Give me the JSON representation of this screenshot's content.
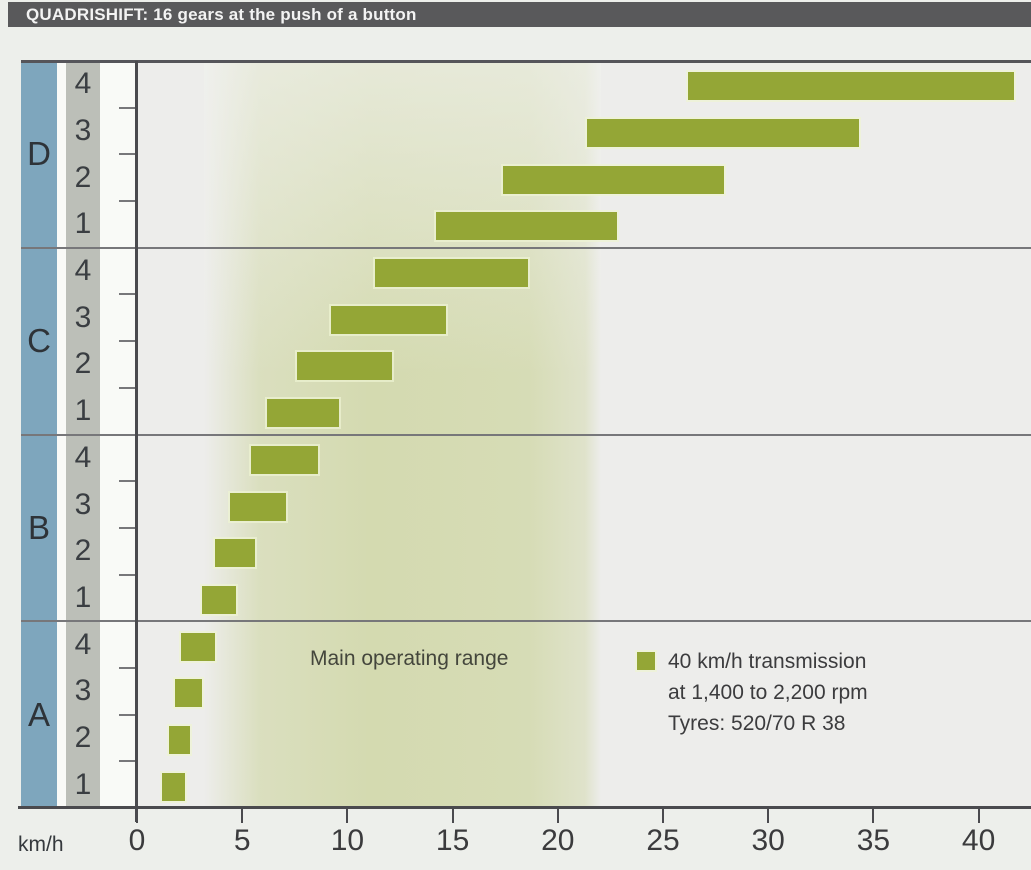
{
  "title_bar": {
    "text": "QUADRISHIFT: 16 gears at the push of a button"
  },
  "axis": {
    "unit_label": "km/h",
    "tick_values": [
      0,
      5,
      10,
      15,
      20,
      25,
      30,
      35,
      40
    ]
  },
  "annotations": {
    "band_label": "Main operating range"
  },
  "legend": {
    "swatch": "bar-color-square",
    "lines": [
      "40 km/h transmission",
      "at 1,400 to 2,200 rpm",
      "Tyres: 520/70 R 38"
    ]
  },
  "colors": {
    "title_bar_bg": "#59595b",
    "title_bar_text": "#f3f3f3",
    "page_bg": "#edefeb",
    "group_column_blue": "#7ea6bd",
    "gear_column_gray": "#bcbfb8",
    "plot_bg": "#ededeb",
    "band_green": "#d4dab0",
    "bar_olive": "#94a636",
    "grid_line": "#77777a",
    "axis_line": "#4a4a4e",
    "text_dark": "#35393d"
  },
  "chart_data": {
    "type": "bar",
    "orientation": "horizontal",
    "title": "QUADRISHIFT: 16 gears at the push of a button",
    "xlabel": "km/h",
    "xlim": [
      0,
      42.5
    ],
    "x_ticks": [
      0,
      5,
      10,
      15,
      20,
      25,
      30,
      35,
      40
    ],
    "grid": "group-boundaries-only",
    "band": {
      "label": "Main operating range",
      "from": 3.2,
      "to": 22.0
    },
    "legend_note": [
      "40 km/h transmission",
      "at 1,400 to 2,200 rpm",
      "Tyres: 520/70 R 38"
    ],
    "groups": [
      {
        "range": "D",
        "gears": [
          {
            "gear": "4",
            "from": 26.2,
            "to": 41.7
          },
          {
            "gear": "3",
            "from": 21.4,
            "to": 34.3
          },
          {
            "gear": "2",
            "from": 17.4,
            "to": 27.9
          },
          {
            "gear": "1",
            "from": 14.2,
            "to": 22.8
          }
        ]
      },
      {
        "range": "C",
        "gears": [
          {
            "gear": "4",
            "from": 11.3,
            "to": 18.6
          },
          {
            "gear": "3",
            "from": 9.2,
            "to": 14.7
          },
          {
            "gear": "2",
            "from": 7.6,
            "to": 12.1
          },
          {
            "gear": "1",
            "from": 6.2,
            "to": 9.6
          }
        ]
      },
      {
        "range": "B",
        "gears": [
          {
            "gear": "4",
            "from": 5.4,
            "to": 8.6
          },
          {
            "gear": "3",
            "from": 4.4,
            "to": 7.1
          },
          {
            "gear": "2",
            "from": 3.7,
            "to": 5.6
          },
          {
            "gear": "1",
            "from": 3.1,
            "to": 4.7
          }
        ]
      },
      {
        "range": "A",
        "gears": [
          {
            "gear": "4",
            "from": 2.1,
            "to": 3.7
          },
          {
            "gear": "3",
            "from": 1.8,
            "to": 3.1
          },
          {
            "gear": "2",
            "from": 1.5,
            "to": 2.5
          },
          {
            "gear": "1",
            "from": 1.2,
            "to": 2.3
          }
        ]
      }
    ]
  }
}
